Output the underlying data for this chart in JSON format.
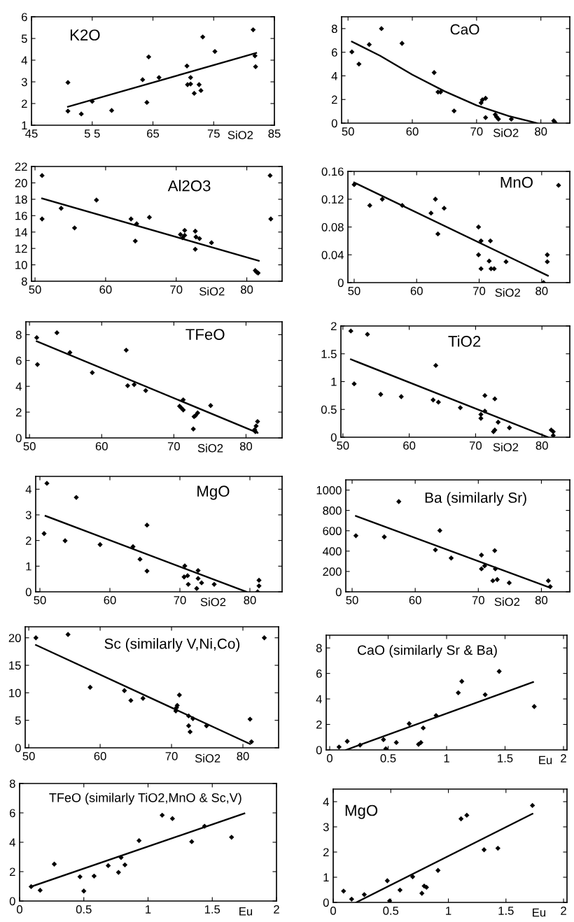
{
  "chart_data": [
    {
      "type": "scatter",
      "title": "K2O",
      "xlabel": "SiO2",
      "grid": false,
      "xlim": [
        45,
        85
      ],
      "ylim": [
        1,
        6
      ],
      "xticks": [
        45,
        {
          "value": 55,
          "label": "5 5"
        },
        65,
        75,
        85
      ],
      "yticks": [
        1,
        2,
        3,
        4,
        5,
        6
      ],
      "series": [
        {
          "color": "#000000",
          "marker": "diamond",
          "x": [
            51,
            51,
            53.2,
            55,
            58.2,
            63.3,
            64,
            64.3,
            66,
            70.6,
            70.7,
            71.2,
            71.2,
            71.8,
            72.6,
            72.9,
            73.2,
            75.2,
            81.5,
            81.8,
            81.9
          ],
          "values": [
            1.65,
            2.97,
            1.52,
            2.1,
            1.68,
            3.1,
            2.05,
            4.15,
            3.2,
            3.73,
            2.87,
            3.2,
            2.9,
            2.47,
            2.87,
            2.6,
            5.07,
            4.4,
            5.4,
            4.2,
            3.7
          ]
        },
        {
          "type": "line",
          "color": "#000000",
          "x": [
            51,
            82
          ],
          "values": [
            1.85,
            4.33
          ]
        }
      ]
    },
    {
      "type": "scatter",
      "title": "CaO",
      "xlabel": "SiO2",
      "grid": false,
      "xlim": [
        49,
        84.5
      ],
      "ylim": [
        0,
        9
      ],
      "xticks": [
        50,
        60,
        70,
        80
      ],
      "yticks": [
        0,
        2,
        4,
        6,
        8
      ],
      "series": [
        {
          "color": "#000000",
          "marker": "diamond",
          "x": [
            50.6,
            51.7,
            53.3,
            55.2,
            58.4,
            63.4,
            64,
            64.4,
            66.5,
            70.7,
            70.9,
            71.4,
            71.4,
            72.9,
            73.1,
            73.4,
            75.4,
            82,
            82.2
          ],
          "values": [
            6.03,
            5.0,
            6.65,
            8.0,
            6.75,
            4.28,
            2.63,
            2.63,
            1.03,
            1.72,
            1.97,
            2.1,
            0.47,
            0.72,
            0.53,
            0.34,
            0.34,
            0.19,
            0.06
          ]
        },
        {
          "type": "line",
          "color": "#000000",
          "x": [
            50.6,
            55,
            60,
            65,
            70,
            75,
            79.4
          ],
          "values": [
            6.9,
            5.7,
            4.1,
            2.7,
            1.5,
            0.6,
            0
          ]
        }
      ]
    },
    {
      "type": "scatter",
      "title": "Al2O3",
      "xlabel": "SiO2",
      "grid": false,
      "xlim": [
        49.5,
        85
      ],
      "ylim": [
        8,
        22
      ],
      "xticks": [
        50,
        60,
        70,
        80
      ],
      "yticks": [
        8,
        10,
        12,
        14,
        16,
        18,
        20,
        22
      ],
      "series": [
        {
          "color": "#000000",
          "marker": "diamond",
          "x": [
            51,
            51,
            53.7,
            55.6,
            58.7,
            63.6,
            64.2,
            64.4,
            66.2,
            70.6,
            70.9,
            71.2,
            71.2,
            72.7,
            72.7,
            72.8,
            73.3,
            75,
            81.2,
            81.4,
            81.6,
            83.3,
            83.4
          ],
          "values": [
            20.9,
            15.6,
            16.9,
            14.5,
            17.9,
            15.6,
            12.9,
            15.0,
            15.8,
            13.7,
            13.3,
            14.2,
            13.6,
            14.1,
            11.9,
            13.4,
            13.2,
            12.7,
            9.3,
            9.1,
            9.0,
            20.9,
            15.6
          ]
        },
        {
          "type": "line",
          "color": "#000000",
          "x": [
            51,
            81.7
          ],
          "values": [
            18.1,
            10.5
          ]
        }
      ]
    },
    {
      "type": "scatter",
      "title": "MnO",
      "xlabel": "SiO2",
      "grid": false,
      "xlim": [
        49,
        84.5
      ],
      "ylim": [
        0,
        0.16
      ],
      "xticks": [
        50,
        60,
        70,
        80
      ],
      "yticks": [
        0,
        0.04,
        0.08,
        0.12,
        0.16
      ],
      "series": [
        {
          "color": "#000000",
          "marker": "diamond",
          "x": [
            50,
            52.5,
            54.5,
            57.7,
            62.3,
            63,
            63.4,
            64.4,
            69.9,
            69.9,
            70.3,
            70.3,
            71.6,
            71.8,
            71.9,
            72.4,
            74.3,
            80.3,
            80.9,
            80.9,
            82.7
          ],
          "values": [
            0.141,
            0.111,
            0.12,
            0.111,
            0.1,
            0.12,
            0.07,
            0.107,
            0.08,
            0.04,
            0.06,
            0.02,
            0.031,
            0.06,
            0.02,
            0.02,
            0.03,
            0,
            0.04,
            0.03,
            0.14
          ]
        },
        {
          "type": "line",
          "color": "#000000",
          "x": [
            50,
            81
          ],
          "values": [
            0.144,
            0.01
          ]
        }
      ]
    },
    {
      "type": "scatter",
      "title": "TFeO",
      "xlabel": "SiO2",
      "grid": false,
      "xlim": [
        49.5,
        85
      ],
      "ylim": [
        0,
        9
      ],
      "xticks": [
        50,
        60,
        70,
        80
      ],
      "yticks": [
        0,
        2,
        4,
        6,
        8
      ],
      "series": [
        {
          "color": "#000000",
          "marker": "diamond",
          "x": [
            51,
            51.1,
            53.8,
            55.6,
            58.7,
            63.4,
            63.6,
            64.5,
            66.1,
            70.8,
            71,
            71.3,
            71.3,
            72.8,
            73,
            73.3,
            72.7,
            75.1,
            81.2,
            81.4,
            81.6,
            81.3
          ],
          "values": [
            7.77,
            5.69,
            8.15,
            6.62,
            5.06,
            6.8,
            4.05,
            4.13,
            3.67,
            2.46,
            2.34,
            2.95,
            2.17,
            1.65,
            1.73,
            1.94,
            0.69,
            2.51,
            0.64,
            0.92,
            1.27,
            0.49
          ]
        },
        {
          "type": "line",
          "color": "#000000",
          "x": [
            51,
            81.6
          ],
          "values": [
            7.49,
            0.4
          ]
        }
      ]
    },
    {
      "type": "scatter",
      "title": "TiO2",
      "xlabel": "SiO2",
      "grid": false,
      "xlim": [
        49.7,
        84.2
      ],
      "ylim": [
        0,
        2
      ],
      "xticks": [
        50,
        60,
        70,
        80
      ],
      "yticks": [
        0,
        0.5,
        1,
        1.5,
        2
      ],
      "series": [
        {
          "color": "#000000",
          "marker": "diamond",
          "x": [
            51.2,
            51.7,
            53.7,
            55.7,
            58.8,
            63.6,
            64,
            64.4,
            67.7,
            70.8,
            70.8,
            71.4,
            71.4,
            72.7,
            72.9,
            72.9,
            73.4,
            75.1,
            81.4,
            81.7,
            81.7
          ],
          "values": [
            1.91,
            0.96,
            1.85,
            0.77,
            0.73,
            0.67,
            1.29,
            0.63,
            0.53,
            0.41,
            0.34,
            0.75,
            0.47,
            0.1,
            0.13,
            0.69,
            0.27,
            0.17,
            0.13,
            0.1,
            0.03
          ]
        },
        {
          "type": "line",
          "color": "#000000",
          "x": [
            51.2,
            80.9
          ],
          "values": [
            1.4,
            0
          ]
        }
      ]
    },
    {
      "type": "scatter",
      "title": "MgO",
      "xlabel": "SiO2",
      "grid": false,
      "xlim": [
        49.4,
        84.6
      ],
      "ylim": [
        0,
        4.5
      ],
      "xticks": [
        50,
        60,
        70,
        80
      ],
      "yticks": [
        0,
        1,
        2,
        3,
        4
      ],
      "series": [
        {
          "color": "#000000",
          "marker": "diamond",
          "x": [
            51,
            50.6,
            53.6,
            55.2,
            58.6,
            63.3,
            64.3,
            65.3,
            65.3,
            70.6,
            70.7,
            71.1,
            71.2,
            72.6,
            72.6,
            72.4,
            73.1,
            74.9,
            81.1,
            81.3,
            81.3
          ],
          "values": [
            4.23,
            2.27,
            1.99,
            3.68,
            1.84,
            1.76,
            1.27,
            2.6,
            0.81,
            0.58,
            1.01,
            0.63,
            0.29,
            0.83,
            0.52,
            0.13,
            0.35,
            0.29,
            0,
            0.23,
            0.45
          ]
        },
        {
          "type": "line",
          "color": "#000000",
          "x": [
            50.8,
            79.5
          ],
          "values": [
            2.96,
            0
          ]
        }
      ]
    },
    {
      "type": "scatter",
      "title": "Ba (similarly Sr)",
      "xlabel": "SiO2",
      "grid": false,
      "xlim": [
        49,
        84.5
      ],
      "ylim": [
        0,
        1100
      ],
      "xticks": [
        50,
        60,
        70,
        80
      ],
      "yticks": [
        0,
        200,
        400,
        600,
        800,
        1000
      ],
      "series": [
        {
          "color": "#000000",
          "marker": "diamond",
          "x": [
            50.6,
            55.1,
            57.4,
            63.9,
            63.2,
            65.7,
            70.5,
            70.5,
            71,
            72.6,
            72.7,
            72.3,
            73,
            74.9,
            81.1,
            81.4
          ],
          "values": [
            551,
            540,
            887,
            602,
            412,
            332,
            361,
            226,
            255,
            405,
            226,
            109,
            120,
            88,
            109,
            51
          ]
        },
        {
          "type": "line",
          "color": "#000000",
          "x": [
            50.6,
            81.4
          ],
          "values": [
            745,
            40
          ]
        }
      ]
    },
    {
      "type": "scatter",
      "title": "Sc (similarly V,Ni,Co)",
      "xlabel": "SiO2",
      "grid": false,
      "xlim": [
        49.5,
        85
      ],
      "ylim": [
        0,
        22
      ],
      "xticks": [
        50,
        60,
        70,
        80
      ],
      "yticks": [
        0,
        5,
        10,
        15,
        20
      ],
      "series": [
        {
          "color": "#000000",
          "marker": "diamond",
          "x": [
            51,
            55.5,
            58.6,
            63.4,
            64.3,
            66,
            70.6,
            70.7,
            70.8,
            71.1,
            72.4,
            72.4,
            72.6,
            73,
            74.9,
            81,
            81.2,
            83
          ],
          "values": [
            20,
            20.6,
            11,
            10.4,
            8.6,
            9,
            6.7,
            7.3,
            7.7,
            9.6,
            5.8,
            4,
            2.9,
            5.3,
            4,
            5.2,
            1.1,
            20
          ]
        },
        {
          "type": "line",
          "color": "#000000",
          "x": [
            51,
            81
          ],
          "values": [
            18.7,
            0.7
          ]
        }
      ]
    },
    {
      "type": "scatter",
      "title": "CaO (similarly Sr & Ba)",
      "xlabel": "Eu",
      "grid": false,
      "xlim": [
        -0.03,
        2.03
      ],
      "ylim": [
        0,
        9
      ],
      "xticks": [
        0,
        0.5,
        1,
        1.5,
        2
      ],
      "yticks": [
        0,
        2,
        4,
        6,
        8
      ],
      "series": [
        {
          "color": "#000000",
          "marker": "diamond",
          "x": [
            0.08,
            0.15,
            0.26,
            0.46,
            0.48,
            0.57,
            0.68,
            0.76,
            0.78,
            0.8,
            0.91,
            1.1,
            1.13,
            1.33,
            1.45,
            1.75
          ],
          "values": [
            0.23,
            0.67,
            0.38,
            0.81,
            0.09,
            0.58,
            2.06,
            0.44,
            0.58,
            1.72,
            2.7,
            4.48,
            5.38,
            4.33,
            6.16,
            3.4
          ]
        },
        {
          "type": "line",
          "color": "#000000",
          "x": [
            0.14,
            1.74
          ],
          "values": [
            0,
            5.32
          ]
        }
      ]
    },
    {
      "type": "scatter",
      "title": "TFeO (similarly TiO2,MnO & Sc,V)",
      "xlabel": "Eu",
      "grid": false,
      "xlim": [
        0,
        2
      ],
      "ylim": [
        0,
        8
      ],
      "xticks": [
        0,
        0.5,
        1,
        1.5,
        2
      ],
      "yticks": [
        0,
        2,
        4,
        6,
        8
      ],
      "series": [
        {
          "color": "#000000",
          "marker": "diamond",
          "x": [
            0.09,
            0.16,
            0.27,
            0.47,
            0.5,
            0.58,
            0.69,
            0.77,
            0.79,
            0.82,
            0.93,
            1.11,
            1.19,
            1.34,
            1.44,
            1.65
          ],
          "values": [
            0.98,
            0.73,
            2.51,
            1.65,
            0.68,
            1.7,
            2.41,
            1.95,
            2.96,
            2.46,
            4.11,
            5.84,
            5.61,
            4.04,
            5.09,
            4.34
          ]
        },
        {
          "type": "line",
          "color": "#000000",
          "x": [
            0.09,
            1.75
          ],
          "values": [
            0.98,
            5.96
          ]
        }
      ]
    },
    {
      "type": "scatter",
      "title": "MgO",
      "xlabel": "Eu",
      "grid": false,
      "xlim": [
        0,
        2.03
      ],
      "ylim": [
        0,
        4.5
      ],
      "xticks": [
        0,
        0.5,
        1,
        1.5,
        2
      ],
      "yticks": [
        0,
        1,
        2,
        3,
        4
      ],
      "series": [
        {
          "color": "#000000",
          "marker": "diamond",
          "x": [
            0.09,
            0.16,
            0.27,
            0.47,
            0.49,
            0.58,
            0.69,
            0.77,
            0.79,
            0.81,
            0.91,
            1.11,
            1.16,
            1.31,
            1.43,
            1.73
          ],
          "values": [
            0.45,
            0.13,
            0.31,
            0.86,
            0.06,
            0.49,
            1.02,
            0.36,
            0.65,
            0.6,
            1.27,
            3.32,
            3.46,
            2.09,
            2.15,
            3.85
          ]
        },
        {
          "type": "line",
          "color": "#000000",
          "x": [
            0.2,
            1.73
          ],
          "values": [
            0,
            3.52
          ]
        }
      ]
    }
  ]
}
